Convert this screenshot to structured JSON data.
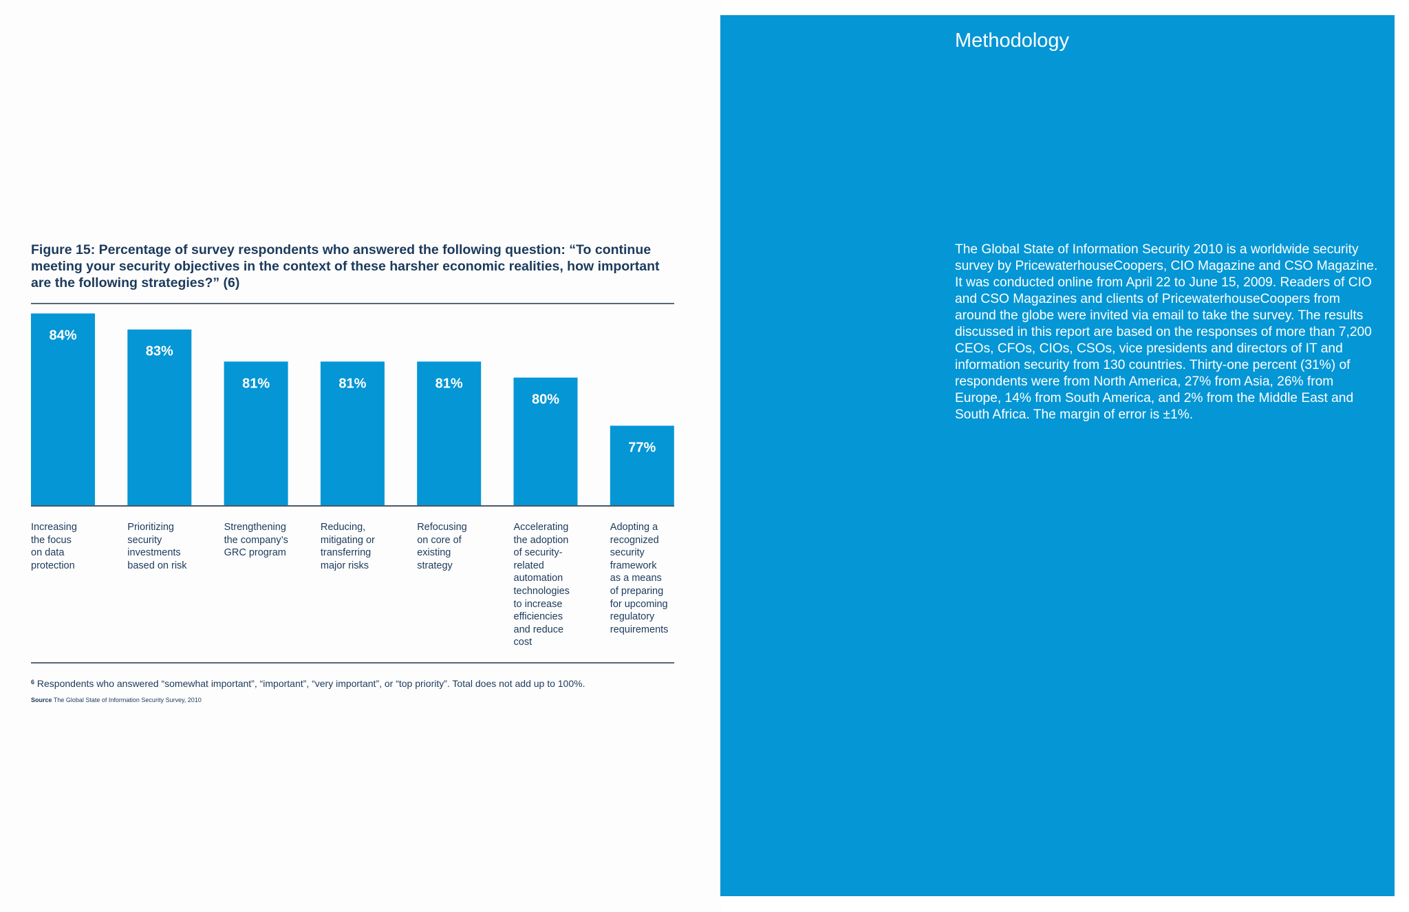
{
  "figure": {
    "title": "Figure 15:  Percentage of survey respondents who answered the following question: “To continue meeting your security objectives in the context of these harsher economic realities, how important are the following strategies?” (6)",
    "footnote_marker": "6",
    "footnote_text": "Respondents who answered “somewhat important”, “important”, “very important”, or “top priority”. Total does not add up to 100%.",
    "source_label": "Source",
    "source_text": "The Global State of Information Security Survey, 2010"
  },
  "chart_data": {
    "type": "bar",
    "categories": [
      "Increasing\nthe focus\non data\nprotection",
      "Prioritizing\nsecurity\ninvestments\nbased on risk",
      "Strengthening\nthe company’s\nGRC program",
      "Reducing,\nmitigating or\ntransferring\nmajor risks",
      "Refocusing\non core of\nexisting\nstrategy",
      "Accelerating\nthe adoption\nof security-\nrelated\nautomation\ntechnologies\nto increase\nefficiencies\nand reduce\ncost",
      "Adopting a\nrecognized\nsecurity\nframework\nas a means\nof preparing\nfor upcoming\nregulatory\nrequirements"
    ],
    "values": [
      84,
      83,
      81,
      81,
      81,
      80,
      77
    ],
    "value_labels": [
      "84%",
      "83%",
      "81%",
      "81%",
      "81%",
      "80%",
      "77%"
    ],
    "title": "Figure 15:  Percentage of survey respondents who answered the following question: “To continue meeting your security objectives in the context of these harsher economic realities, how important are the following strategies?” (6)",
    "xlabel": "",
    "ylabel": "",
    "ylim": [
      72,
      85
    ],
    "grid": false,
    "legend": "none",
    "bar_color": "#0596d5",
    "label_color": "#1c3a5c"
  },
  "methodology": {
    "heading": "Methodology",
    "body": "The Global State of Information Security 2010 is a worldwide security survey by PricewaterhouseCoopers, CIO Magazine and CSO Magazine. It was conducted online from April 22 to June 15, 2009. Readers of CIO and CSO Magazines and clients of PricewaterhouseCoopers from around the globe were invited via email to take the survey. The results discussed in this report are based on the responses of more than 7,200 CEOs, CFOs, CIOs, CSOs, vice presidents and directors of IT and information security from 130 countries. Thirty-one percent (31%) of respondents were from North America, 27% from Asia, 26% from Europe, 14% from South America, and 2% from the Middle East and South Africa. The margin of error is ±1%.",
    "background_color": "#0596d5"
  }
}
